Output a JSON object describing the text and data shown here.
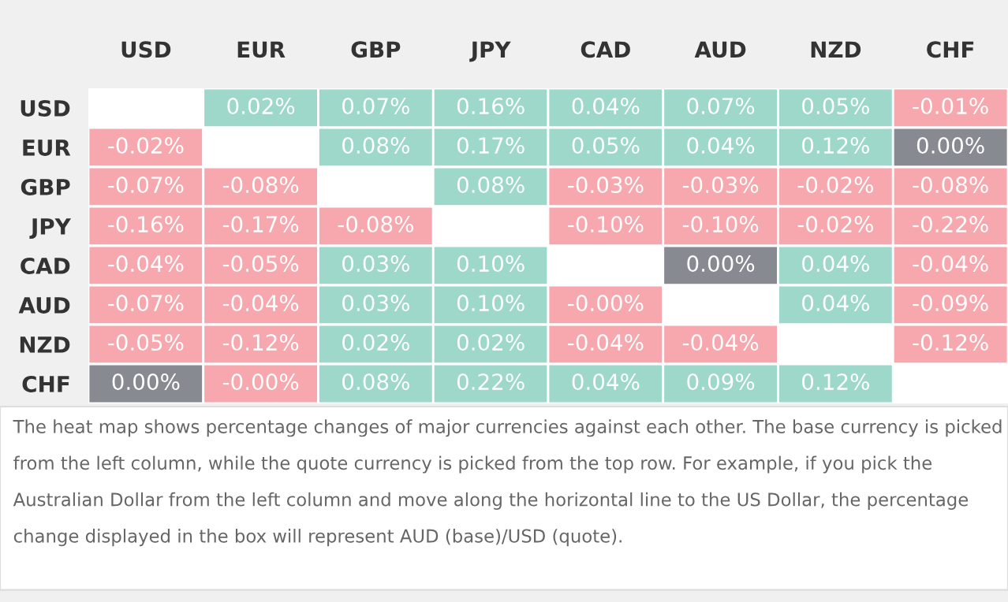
{
  "chart_data": {
    "type": "heatmap",
    "categories": [
      "USD",
      "EUR",
      "GBP",
      "JPY",
      "CAD",
      "AUD",
      "NZD",
      "CHF"
    ],
    "y_categories": [
      "USD",
      "EUR",
      "GBP",
      "JPY",
      "CAD",
      "AUD",
      "NZD",
      "CHF"
    ],
    "cells": [
      [
        null,
        0.02,
        0.07,
        0.16,
        0.04,
        0.07,
        0.05,
        -0.01
      ],
      [
        -0.02,
        null,
        0.08,
        0.17,
        0.05,
        0.04,
        0.12,
        0.0
      ],
      [
        -0.07,
        -0.08,
        null,
        0.08,
        -0.03,
        -0.03,
        -0.02,
        -0.08
      ],
      [
        -0.16,
        -0.17,
        -0.08,
        null,
        -0.1,
        -0.1,
        -0.02,
        -0.22
      ],
      [
        -0.04,
        -0.05,
        0.03,
        0.1,
        null,
        0.0,
        0.04,
        -0.04
      ],
      [
        -0.07,
        -0.04,
        0.03,
        0.1,
        -0.0,
        null,
        0.04,
        -0.09
      ],
      [
        -0.05,
        -0.12,
        0.02,
        0.02,
        -0.04,
        -0.04,
        null,
        -0.12
      ],
      [
        0.0,
        -0.0,
        0.08,
        0.22,
        0.04,
        0.09,
        0.12,
        null
      ]
    ],
    "cell_labels": [
      [
        null,
        "0.02%",
        "0.07%",
        "0.16%",
        "0.04%",
        "0.07%",
        "0.05%",
        "-0.01%"
      ],
      [
        "-0.02%",
        null,
        "0.08%",
        "0.17%",
        "0.05%",
        "0.04%",
        "0.12%",
        "0.00%"
      ],
      [
        "-0.07%",
        "-0.08%",
        null,
        "0.08%",
        "-0.03%",
        "-0.03%",
        "-0.02%",
        "-0.08%"
      ],
      [
        "-0.16%",
        "-0.17%",
        "-0.08%",
        null,
        "-0.10%",
        "-0.10%",
        "-0.02%",
        "-0.22%"
      ],
      [
        "-0.04%",
        "-0.05%",
        "0.03%",
        "0.10%",
        null,
        "0.00%",
        "0.04%",
        "-0.04%"
      ],
      [
        "-0.07%",
        "-0.04%",
        "0.03%",
        "0.10%",
        "-0.00%",
        null,
        "0.04%",
        "-0.09%"
      ],
      [
        "-0.05%",
        "-0.12%",
        "0.02%",
        "0.02%",
        "-0.04%",
        "-0.04%",
        null,
        "-0.12%"
      ],
      [
        "0.00%",
        "-0.00%",
        "0.08%",
        "0.22%",
        "0.04%",
        "0.09%",
        "0.12%",
        null
      ]
    ],
    "annotations": [
      "The heat map shows percentage changes of major currencies against each other. The base currency is picked from the left column, while the quote currency is picked from the top row. For example, if you pick the Australian Dollar from the left column and move along the horizontal line to the US Dollar, the percentage change displayed in the box will represent AUD (base)/USD (quote)."
    ]
  }
}
